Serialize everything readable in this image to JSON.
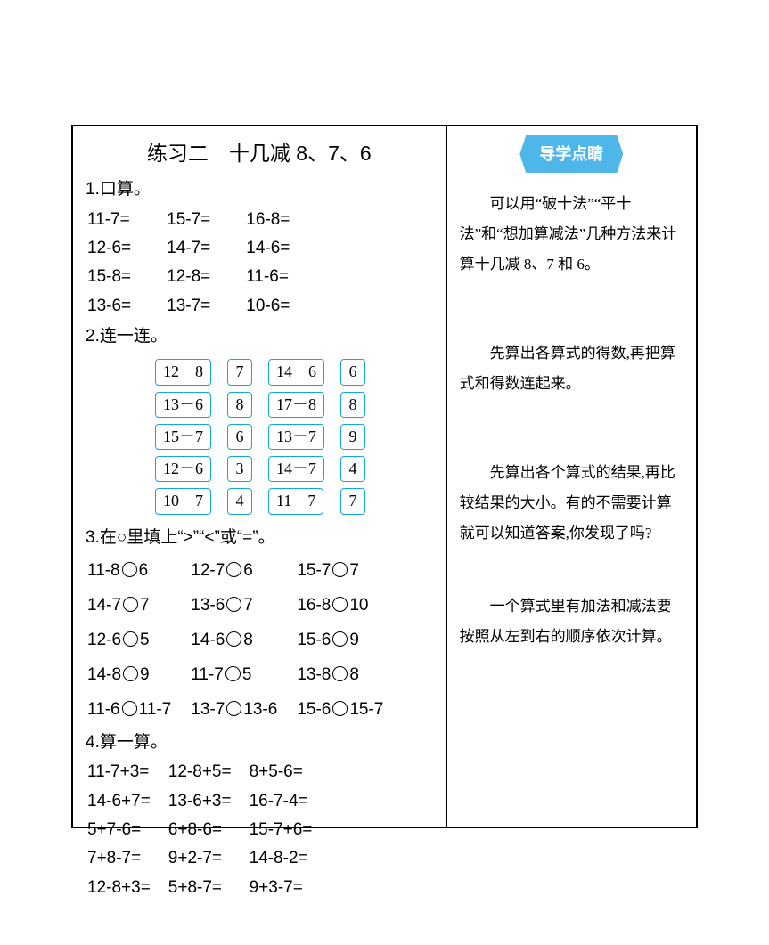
{
  "colors": {
    "border": "#000000",
    "box_border": "#15a8d6",
    "side_title_bg": "#4fb6ea",
    "side_title_fg": "#ffffff",
    "text": "#000000",
    "background": "#ffffff"
  },
  "title": "练习二　十几减 8、7、6",
  "q1": {
    "label": "1.口算。",
    "rows": [
      [
        "11-7=",
        "15-7=",
        "16-8="
      ],
      [
        "12-6=",
        "14-7=",
        "14-6="
      ],
      [
        "15-8=",
        "12-8=",
        "11-6="
      ],
      [
        "13-6=",
        "13-7=",
        "10-6="
      ]
    ]
  },
  "q2": {
    "label": "2.连一连。",
    "rows": [
      [
        "12　8",
        "7",
        "14　6",
        "6"
      ],
      [
        "13－6",
        "8",
        "17－8",
        "8"
      ],
      [
        "15－7",
        "6",
        "13－7",
        "9"
      ],
      [
        "12－6",
        "3",
        "14－7",
        "4"
      ],
      [
        "10　7",
        "4",
        "11　7",
        "7"
      ]
    ]
  },
  "q3": {
    "label": "3.在○里填上“>”“<”或“=”。",
    "rows": [
      [
        [
          "11-8",
          "6"
        ],
        [
          "12-7",
          "6"
        ],
        [
          "15-7",
          "7"
        ]
      ],
      [
        [
          "14-7",
          "7"
        ],
        [
          "13-6",
          "7"
        ],
        [
          "16-8",
          "10"
        ]
      ],
      [
        [
          "12-6",
          "5"
        ],
        [
          "14-6",
          "8"
        ],
        [
          "15-6",
          "9"
        ]
      ],
      [
        [
          "14-8",
          "9"
        ],
        [
          "11-7",
          "5"
        ],
        [
          "13-8",
          "8"
        ]
      ],
      [
        [
          "11-6",
          "11-7"
        ],
        [
          "13-7",
          "13-6"
        ],
        [
          "15-6",
          "15-7"
        ]
      ]
    ]
  },
  "q4": {
    "label": "4.算一算。",
    "rows": [
      [
        "11-7+3=",
        "12-8+5=",
        "8+5-6="
      ],
      [
        "14-6+7=",
        "13-6+3=",
        "16-7-4="
      ],
      [
        "5+7-6=",
        "6+8-6=",
        "15-7+6="
      ],
      [
        "7+8-7=",
        "9+2-7=",
        "14-8-2="
      ],
      [
        "12-8+3=",
        "5+8-7=",
        "9+3-7="
      ]
    ]
  },
  "sidebar": {
    "title": "导学点睛",
    "p1": "可以用“破十法”“平十法”和“想加算减法”几种方法来计算十几减 8、7 和 6。",
    "p2": "先算出各算式的得数,再把算式和得数连起来。",
    "p3": "先算出各个算式的结果,再比较结果的大小。有的不需要计算就可以知道答案,你发现了吗?",
    "p4": "一个算式里有加法和减法要按照从左到右的顺序依次计算。"
  }
}
